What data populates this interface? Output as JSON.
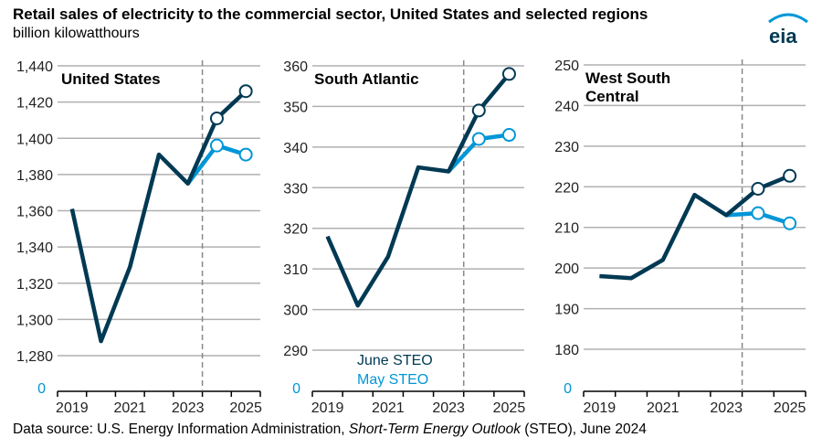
{
  "title": "Retail sales of electricity to the commercial sector, United States and selected regions",
  "unit": "billion kilowatthours",
  "source": {
    "prefix": "Data source: U.S. Energy Information Administration, ",
    "italic": "Short-Term Energy Outlook",
    "suffix": " (STEO), June 2024"
  },
  "logo": "eia",
  "colors": {
    "june": "#003953",
    "may": "#0096d7",
    "grid": "#b0b0b0"
  },
  "chart_data": [
    {
      "type": "line",
      "title": "United States",
      "years": [
        2019,
        2020,
        2021,
        2022,
        2023,
        2024,
        2025
      ],
      "xticks": [
        "2019",
        "2021",
        "2023",
        "2025"
      ],
      "yticks": [
        "1,280",
        "1,300",
        "1,320",
        "1,340",
        "1,360",
        "1,380",
        "1,400",
        "1,420",
        "1,440"
      ],
      "ylim": [
        1280,
        1440
      ],
      "axis_break_label": "0",
      "forecast_start": 2024,
      "series": [
        {
          "name": "June STEO",
          "values": [
            1361,
            1288,
            1329,
            1391,
            1375,
            1411,
            1426
          ]
        },
        {
          "name": "May STEO",
          "values": [
            null,
            null,
            null,
            null,
            1375,
            1396,
            1391
          ]
        }
      ]
    },
    {
      "type": "line",
      "title": "South Atlantic",
      "years": [
        2019,
        2020,
        2021,
        2022,
        2023,
        2024,
        2025
      ],
      "xticks": [
        "2019",
        "2021",
        "2023",
        "2025"
      ],
      "yticks": [
        "290",
        "300",
        "310",
        "320",
        "330",
        "340",
        "350",
        "360"
      ],
      "ylim": [
        290,
        360
      ],
      "axis_break_label": "0",
      "forecast_start": 2024,
      "series": [
        {
          "name": "June STEO",
          "values": [
            318,
            301,
            313,
            335,
            334,
            349,
            358
          ]
        },
        {
          "name": "May STEO",
          "values": [
            null,
            null,
            null,
            null,
            334,
            342,
            343
          ]
        }
      ]
    },
    {
      "type": "line",
      "title": "West South Central",
      "years": [
        2019,
        2020,
        2021,
        2022,
        2023,
        2024,
        2025
      ],
      "xticks": [
        "2019",
        "2021",
        "2023",
        "2025"
      ],
      "yticks": [
        "180",
        "190",
        "200",
        "210",
        "220",
        "230",
        "240",
        "250"
      ],
      "ylim": [
        180,
        250
      ],
      "axis_break_label": "0",
      "forecast_start": 2024,
      "series": [
        {
          "name": "June STEO",
          "values": [
            198,
            197.5,
            202,
            218,
            213,
            219.5,
            222.7
          ]
        },
        {
          "name": "May STEO",
          "values": [
            null,
            null,
            null,
            null,
            213,
            213.5,
            211
          ]
        }
      ]
    }
  ]
}
